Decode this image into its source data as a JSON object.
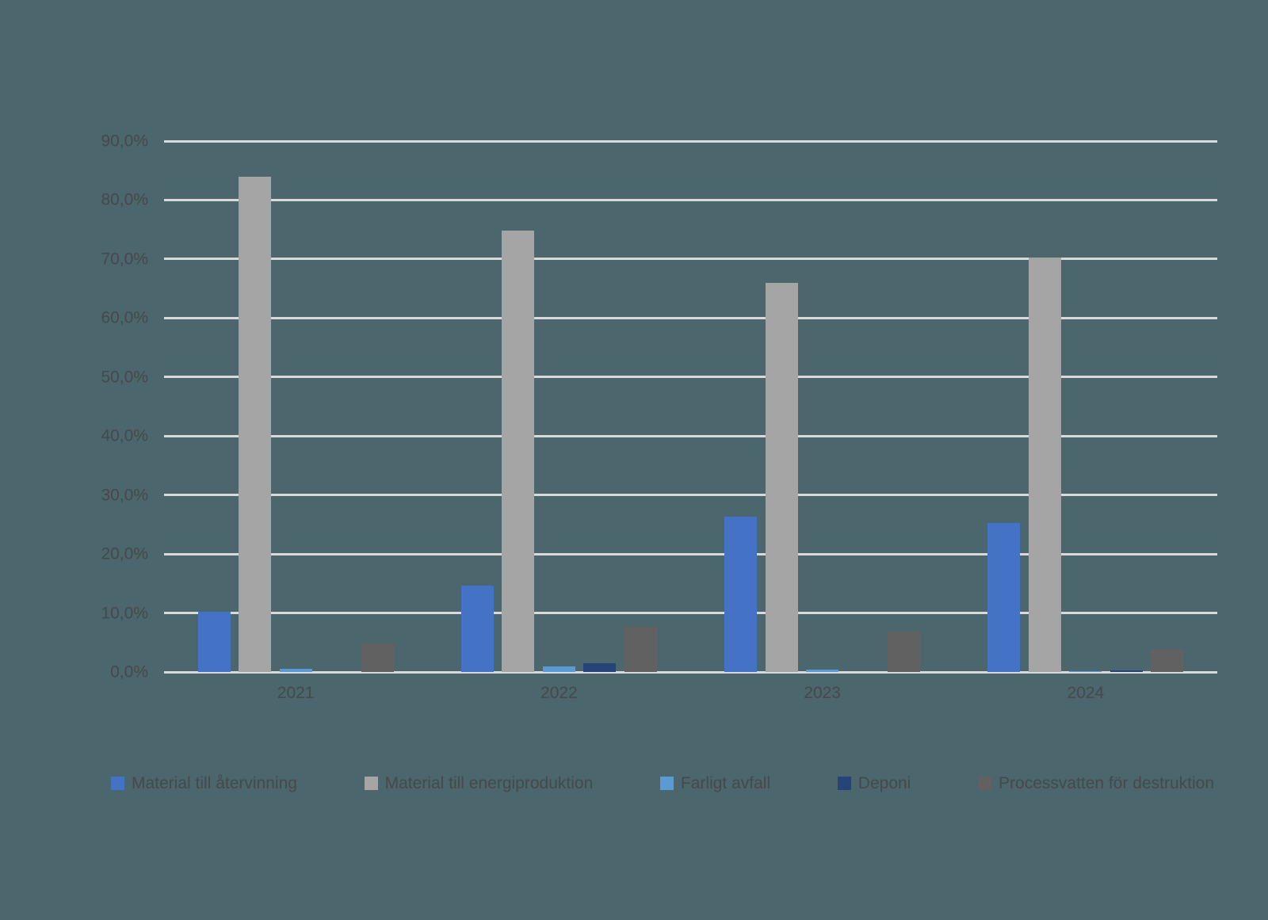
{
  "app": {
    "background_color": "#4B666C"
  },
  "chart_data": {
    "type": "bar",
    "title": "",
    "categories": [
      "2021",
      "2022",
      "2023",
      "2024"
    ],
    "series": [
      {
        "name": "Material till återvinning",
        "color": "#4472C4",
        "values": [
          10.2,
          14.6,
          26.3,
          25.2
        ]
      },
      {
        "name": "Material till energiproduktion",
        "color": "#A5A5A5",
        "values": [
          84.0,
          74.8,
          66.0,
          70.3
        ]
      },
      {
        "name": "Farligt avfall",
        "color": "#5B9BD5",
        "values": [
          0.6,
          0.9,
          0.4,
          0.1
        ]
      },
      {
        "name": "Deponi",
        "color": "#264478",
        "values": [
          0.0,
          1.5,
          0.0,
          0.3
        ]
      },
      {
        "name": "Processvatten för destruktion",
        "color": "#616161",
        "values": [
          4.9,
          7.6,
          6.8,
          3.9
        ]
      }
    ],
    "y_ticks": [
      "90,0%",
      "80,0%",
      "70,0%",
      "60,0%",
      "50,0%",
      "40,0%",
      "30,0%",
      "20,0%",
      "10,0%",
      "0,0%"
    ],
    "ylim": [
      0,
      90
    ],
    "y_tick_step": 10,
    "xlabel": "",
    "ylabel": "",
    "grid": true,
    "gridline_color": "#D9D9D9",
    "axis_text_color": "#45494C",
    "legend_position": "bottom"
  }
}
